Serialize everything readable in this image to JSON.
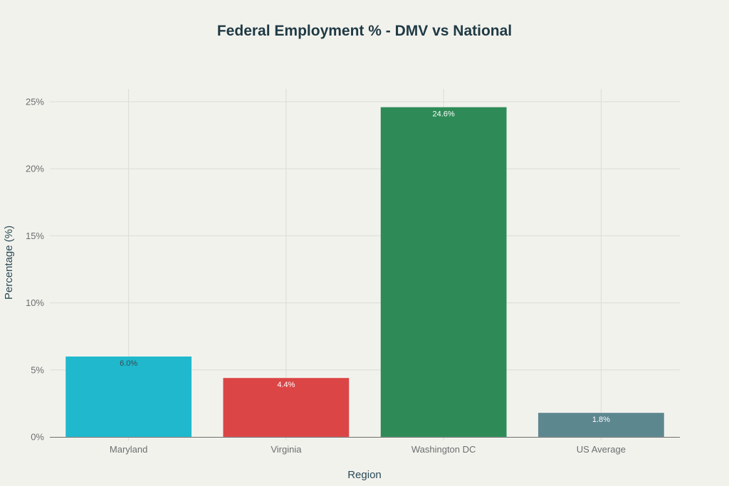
{
  "chart_data": {
    "type": "bar",
    "title": "Federal Employment % - DMV vs National",
    "xlabel": "Region",
    "ylabel": "Percentage (%)",
    "categories": [
      "Maryland",
      "Virginia",
      "Washington DC",
      "US Average"
    ],
    "values": [
      6.0,
      4.4,
      24.6,
      1.8
    ],
    "data_labels": [
      "6.0%",
      "4.4%",
      "24.6%",
      "1.8%"
    ],
    "colors": [
      "#1fb8cd",
      "#db4545",
      "#2e8b57",
      "#5d878f"
    ],
    "label_colors": [
      "#3a4a50",
      "#ffffff",
      "#ffffff",
      "#ffffff"
    ],
    "ylim": [
      0,
      26
    ],
    "yticks": [
      0,
      5,
      10,
      15,
      20,
      25
    ],
    "ytick_labels": [
      "0%",
      "5%",
      "10%",
      "15%",
      "20%",
      "25%"
    ],
    "grid": true,
    "legend": "none"
  }
}
